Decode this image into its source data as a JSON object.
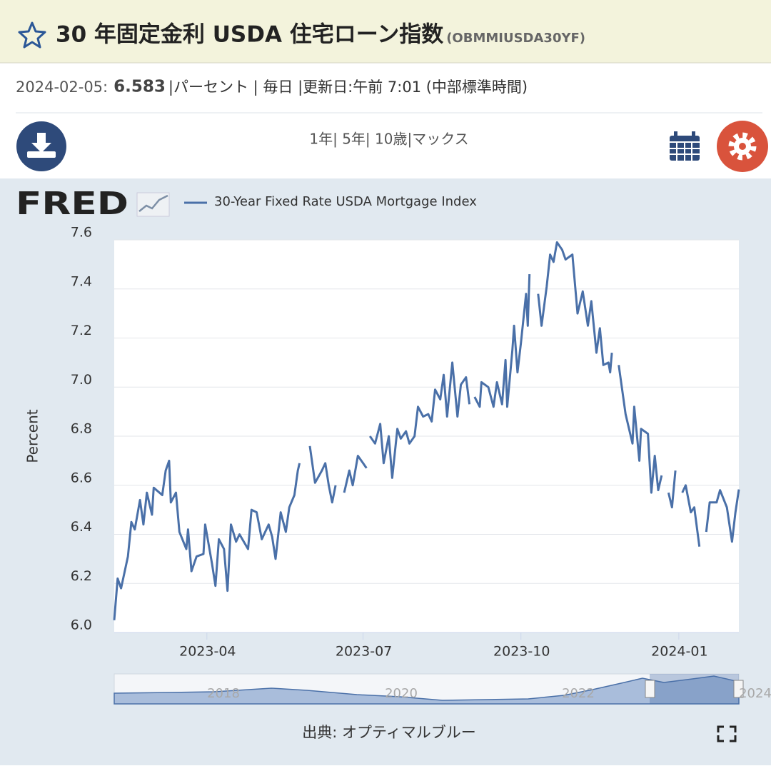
{
  "header": {
    "title": "30 年固定金利 USDA 住宅ローン指数",
    "code": "(OBMMIUSDA30YF)"
  },
  "info": {
    "date": "2024-02-05:",
    "value": "6.583",
    "rest": "|パーセント | 毎日 |更新日:午前 7:01 (中部標準時間)"
  },
  "toolbar": {
    "ranges": "1年| 5年| 10歳|マックス"
  },
  "logo": "FRED",
  "navigator": {
    "labels": [
      "2018",
      "2020",
      "2022",
      "2024"
    ]
  },
  "footer": {
    "source": "出典: オプティマルブルー"
  },
  "chart_data": {
    "type": "line",
    "y_label": "Percent",
    "series": [
      {
        "name": "30-Year Fixed Rate USDA Mortgage Index",
        "color": "#4a70a8",
        "values": [
          6.05,
          6.22,
          6.18,
          6.31,
          6.45,
          6.42,
          6.54,
          6.44,
          6.57,
          6.48,
          6.59,
          6.56,
          6.66,
          6.7,
          6.53,
          6.57,
          6.41,
          6.34,
          6.42,
          6.25,
          6.31,
          6.32,
          6.44,
          6.28,
          6.19,
          6.38,
          6.34,
          6.17,
          6.44,
          6.37,
          6.4,
          6.34,
          6.5,
          6.49,
          6.38,
          6.44,
          6.39,
          6.3,
          6.49,
          6.41,
          6.51,
          6.56,
          6.66,
          6.69,
          null,
          6.76,
          6.61,
          6.66,
          6.69,
          6.6,
          6.53,
          6.6,
          null,
          6.57,
          6.66,
          6.6,
          6.72,
          6.69,
          6.67,
          null,
          6.8,
          6.77,
          6.85,
          6.69,
          6.8,
          6.63,
          6.83,
          6.79,
          6.82,
          6.77,
          6.8,
          6.92,
          6.88,
          6.89,
          6.86,
          6.99,
          6.95,
          7.05,
          6.88,
          7.1,
          6.88,
          7.01,
          7.04,
          6.93,
          null,
          6.96,
          6.92,
          7.02,
          7.0,
          6.92,
          7.02,
          6.93,
          7.11,
          6.92,
          7.15,
          7.25,
          7.06,
          7.18,
          7.38,
          7.25,
          7.46,
          null,
          7.38,
          7.25,
          7.41,
          7.54,
          7.51,
          7.59,
          7.56,
          7.52,
          7.54,
          7.3,
          7.39,
          7.25,
          7.35,
          7.14,
          7.24,
          7.09,
          7.1,
          7.06,
          7.14,
          null,
          7.09,
          6.89,
          6.77,
          6.92,
          6.7,
          6.83,
          6.81,
          6.57,
          6.72,
          6.58,
          6.64,
          null,
          6.57,
          6.51,
          6.66,
          null,
          6.57,
          6.6,
          6.49,
          6.51,
          6.35,
          null,
          6.41,
          6.53,
          6.53,
          6.58,
          6.51,
          6.37,
          6.49,
          6.583
        ]
      }
    ],
    "x": [
      "2023-02-06",
      "2023-02-08",
      "2023-02-10",
      "2023-02-14",
      "2023-02-16",
      "2023-02-18",
      "2023-02-21",
      "2023-02-23",
      "2023-02-25",
      "2023-02-28",
      "2023-03-01",
      "2023-03-06",
      "2023-03-08",
      "2023-03-10",
      "2023-03-11",
      "2023-03-14",
      "2023-03-16",
      "2023-03-20",
      "2023-03-21",
      "2023-03-23",
      "2023-03-26",
      "2023-03-30",
      "2023-03-31",
      "2023-04-04",
      "2023-04-06",
      "2023-04-08",
      "2023-04-11",
      "2023-04-13",
      "2023-04-15",
      "2023-04-18",
      "2023-04-20",
      "2023-04-25",
      "2023-04-27",
      "2023-04-30",
      "2023-05-03",
      "2023-05-07",
      "2023-05-09",
      "2023-05-11",
      "2023-05-14",
      "2023-05-17",
      "2023-05-19",
      "2023-05-22",
      "2023-05-24",
      "2023-05-25",
      "2023-05-28",
      "2023-05-31",
      "2023-06-03",
      "2023-06-07",
      "2023-06-09",
      "2023-06-11",
      "2023-06-13",
      "2023-06-15",
      "2023-06-17",
      "2023-06-20",
      "2023-06-23",
      "2023-06-25",
      "2023-06-28",
      "2023-07-01",
      "2023-07-03",
      "2023-07-04",
      "2023-07-05",
      "2023-07-08",
      "2023-07-11",
      "2023-07-13",
      "2023-07-16",
      "2023-07-18",
      "2023-07-21",
      "2023-07-23",
      "2023-07-26",
      "2023-07-28",
      "2023-07-31",
      "2023-08-02",
      "2023-08-05",
      "2023-08-08",
      "2023-08-10",
      "2023-08-12",
      "2023-08-15",
      "2023-08-17",
      "2023-08-19",
      "2023-08-22",
      "2023-08-25",
      "2023-08-27",
      "2023-08-30",
      "2023-09-01",
      "2023-09-02",
      "2023-09-04",
      "2023-09-07",
      "2023-09-08",
      "2023-09-12",
      "2023-09-15",
      "2023-09-17",
      "2023-09-20",
      "2023-09-22",
      "2023-09-23",
      "2023-09-26",
      "2023-09-27",
      "2023-09-29",
      "2023-10-01",
      "2023-10-04",
      "2023-10-05",
      "2023-10-06",
      "2023-10-08",
      "2023-10-11",
      "2023-10-13",
      "2023-10-16",
      "2023-10-18",
      "2023-10-20",
      "2023-10-22",
      "2023-10-25",
      "2023-10-27",
      "2023-10-31",
      "2023-11-03",
      "2023-11-06",
      "2023-11-09",
      "2023-11-11",
      "2023-11-14",
      "2023-11-16",
      "2023-11-18",
      "2023-11-21",
      "2023-11-22",
      "2023-11-23",
      "2023-11-25",
      "2023-11-27",
      "2023-12-01",
      "2023-12-05",
      "2023-12-06",
      "2023-12-09",
      "2023-12-10",
      "2023-12-14",
      "2023-12-16",
      "2023-12-18",
      "2023-12-20",
      "2023-12-22",
      "2023-12-24",
      "2023-12-26",
      "2023-12-28",
      "2023-12-30",
      "2023-12-31",
      "2024-01-03",
      "2024-01-05",
      "2024-01-08",
      "2024-01-10",
      "2024-01-13",
      "2024-01-15",
      "2024-01-17",
      "2024-01-19",
      "2024-01-23",
      "2024-01-25",
      "2024-01-29",
      "2024-02-01",
      "2024-02-03",
      "2024-02-05"
    ],
    "xlim": [
      "2023-02-06",
      "2024-02-05"
    ],
    "xticks": [
      "2023-04",
      "2023-07",
      "2023-10",
      "2024-01"
    ],
    "ylim": [
      6,
      7.6
    ],
    "yticks": [
      {
        "value": 6,
        "label": "6.0"
      },
      6.2,
      6.4,
      6.6,
      6.8,
      {
        "value": 7,
        "label": "7.0"
      },
      7.2,
      7.4,
      7.6
    ],
    "grid": true
  }
}
